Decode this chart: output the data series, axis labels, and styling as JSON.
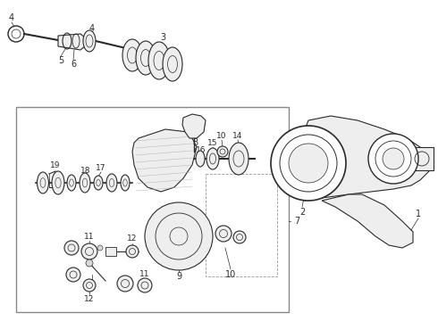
{
  "bg_color": "#ffffff",
  "line_color": "#2a2a2a",
  "gray_fill": "#d8d8d8",
  "light_fill": "#eeeeee",
  "figsize": [
    4.9,
    3.6
  ],
  "dpi": 100
}
